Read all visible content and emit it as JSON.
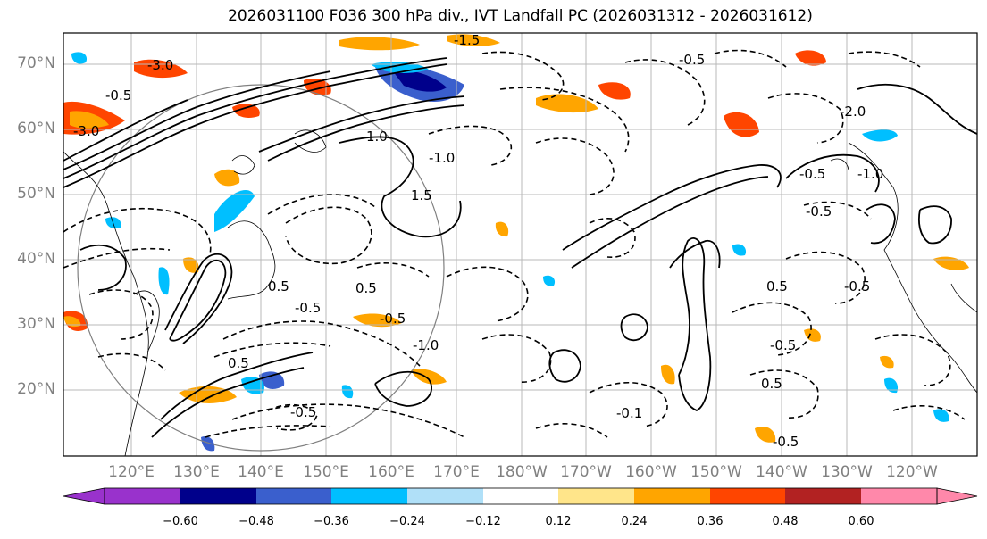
{
  "title": "2026031100 F036 300 hPa div., IVT Landfall PC (2026031312 - 2026031612)",
  "latitudes": [
    "70°N",
    "60°N",
    "50°N",
    "40°N",
    "30°N",
    "20°N"
  ],
  "longitudes": [
    "120°E",
    "130°E",
    "140°E",
    "150°E",
    "160°E",
    "170°E",
    "180°W",
    "170°W",
    "160°W",
    "150°W",
    "140°W",
    "130°W",
    "120°W"
  ],
  "contour_labels": [
    "-3.0",
    "-3.0",
    "-1.5",
    "-0.5",
    "-0.5",
    "-2.0",
    "-1.0",
    "-0.5",
    "1.0",
    "1.5",
    "0.5",
    "0.5",
    "-0.5",
    "-1.0",
    "-0.5",
    "0.5",
    "-0.5",
    "-0.1",
    "-0.5",
    "0.5",
    "-0.5",
    "0.5",
    "-1.0",
    "-0.5",
    "-0.5"
  ],
  "colorbar": {
    "ticks": [
      "−0.60",
      "−0.48",
      "−0.36",
      "−0.24",
      "−0.12",
      "0.12",
      "0.24",
      "0.36",
      "0.48",
      "0.60"
    ],
    "colors": [
      "#9932cc",
      "#00008b",
      "#3a5fcd",
      "#00bfff",
      "#b0e0f8",
      "#ffffff",
      "#ffe58a",
      "#ffa500",
      "#ff4500",
      "#b22222",
      "#ff88aa"
    ]
  }
}
